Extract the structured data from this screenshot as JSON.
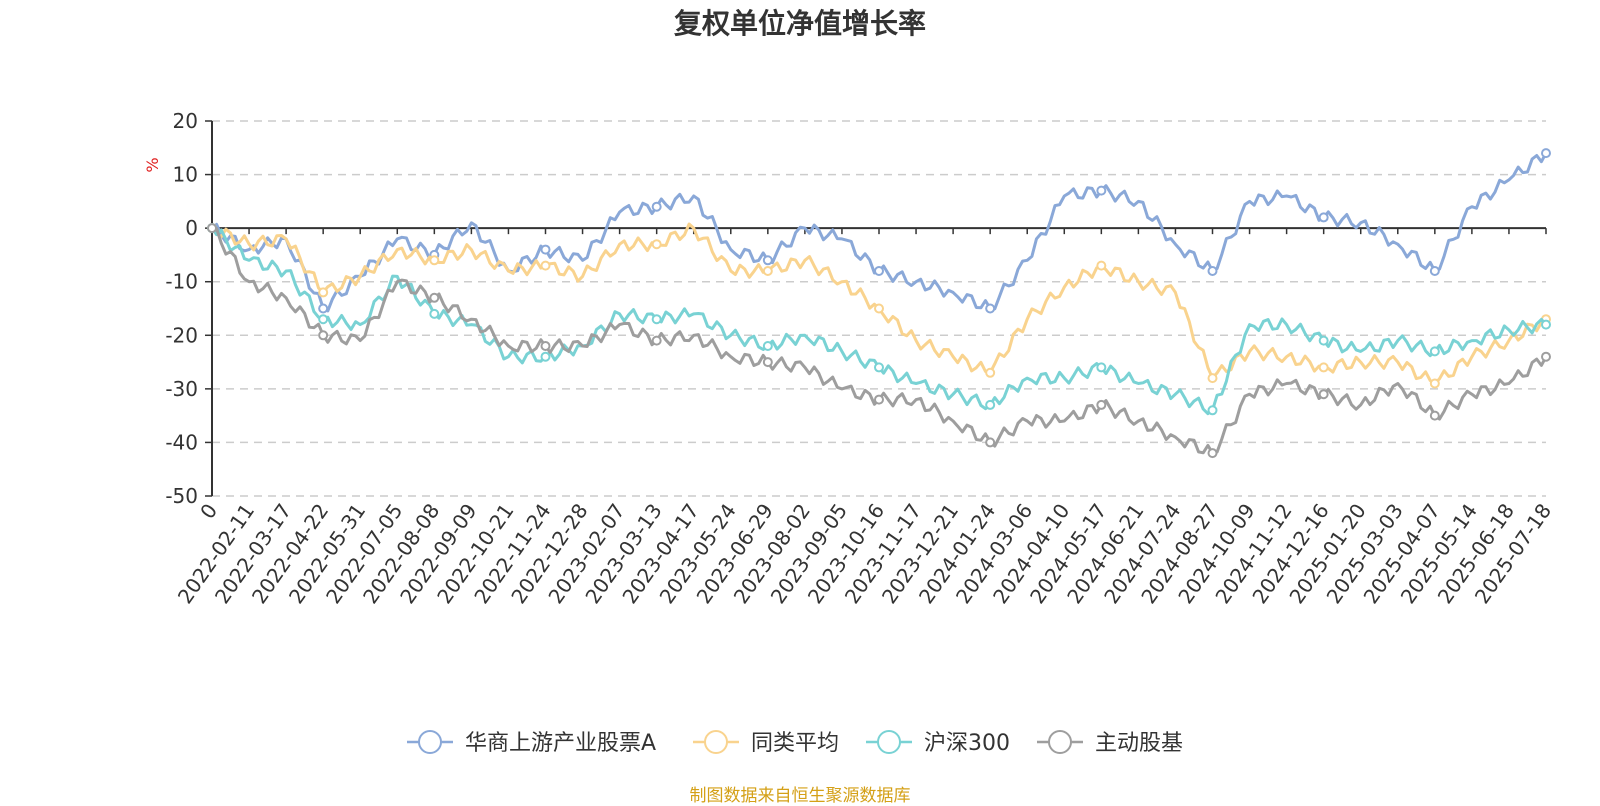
{
  "chart_data": {
    "type": "line",
    "title": "复权单位净值增长率",
    "ylabel": "%",
    "ylim": [
      -50,
      20
    ],
    "yticks": [
      "20",
      "10",
      "0",
      "-10",
      "-20",
      "-30",
      "-40",
      "-50"
    ],
    "grid": true,
    "legend_position": "bottom",
    "categories": [
      "0",
      "2022-02-11",
      "2022-03-17",
      "2022-04-22",
      "2022-05-31",
      "2022-07-05",
      "2022-08-08",
      "2022-09-09",
      "2022-10-21",
      "2022-11-24",
      "2022-12-28",
      "2023-02-07",
      "2023-03-13",
      "2023-04-17",
      "2023-05-24",
      "2023-06-29",
      "2023-08-02",
      "2023-09-05",
      "2023-10-16",
      "2023-11-17",
      "2023-12-21",
      "2024-01-24",
      "2024-03-06",
      "2024-04-10",
      "2024-05-17",
      "2024-06-21",
      "2024-07-24",
      "2024-08-27",
      "2024-10-09",
      "2024-11-12",
      "2024-12-16",
      "2025-01-20",
      "2025-03-03",
      "2025-04-07",
      "2025-05-14",
      "2025-06-18",
      "2025-07-18"
    ],
    "series": [
      {
        "name": "华商上游产业股票A",
        "color": "#8aa8d8",
        "values": [
          0,
          -4,
          -2,
          -15,
          -9,
          -2,
          -5,
          1,
          -8,
          -4,
          -6,
          3,
          4,
          6,
          -4,
          -6,
          0,
          -2,
          -8,
          -10,
          -12,
          -15,
          -6,
          6,
          7,
          5,
          -3,
          -8,
          5,
          6,
          2,
          1,
          -3,
          -8,
          4,
          9,
          14
        ]
      },
      {
        "name": "同类平均",
        "color": "#f9d38e",
        "values": [
          0,
          -3,
          -2,
          -12,
          -9,
          -4,
          -6,
          -4,
          -8,
          -7,
          -9,
          -3,
          -3,
          0,
          -8,
          -8,
          -6,
          -10,
          -15,
          -21,
          -24,
          -27,
          -17,
          -11,
          -7,
          -10,
          -12,
          -28,
          -23,
          -24,
          -26,
          -25,
          -25,
          -29,
          -24,
          -21,
          -17
        ]
      },
      {
        "name": "沪深300",
        "color": "#79d2d4",
        "values": [
          0,
          -6,
          -8,
          -17,
          -18,
          -9,
          -16,
          -18,
          -24,
          -24,
          -22,
          -16,
          -17,
          -16,
          -20,
          -22,
          -20,
          -23,
          -26,
          -29,
          -31,
          -33,
          -28,
          -28,
          -26,
          -29,
          -31,
          -34,
          -18,
          -18,
          -21,
          -23,
          -21,
          -23,
          -21,
          -19,
          -18
        ]
      },
      {
        "name": "主动股基",
        "color": "#9e9e9e",
        "values": [
          0,
          -10,
          -13,
          -20,
          -21,
          -10,
          -13,
          -17,
          -22,
          -22,
          -22,
          -18,
          -21,
          -20,
          -24,
          -25,
          -26,
          -30,
          -32,
          -32,
          -36,
          -40,
          -36,
          -36,
          -33,
          -36,
          -39,
          -42,
          -31,
          -29,
          -31,
          -33,
          -29,
          -35,
          -31,
          -29,
          -24
        ]
      }
    ]
  },
  "footer": {
    "source": "制图数据来自恒生聚源数据库"
  }
}
